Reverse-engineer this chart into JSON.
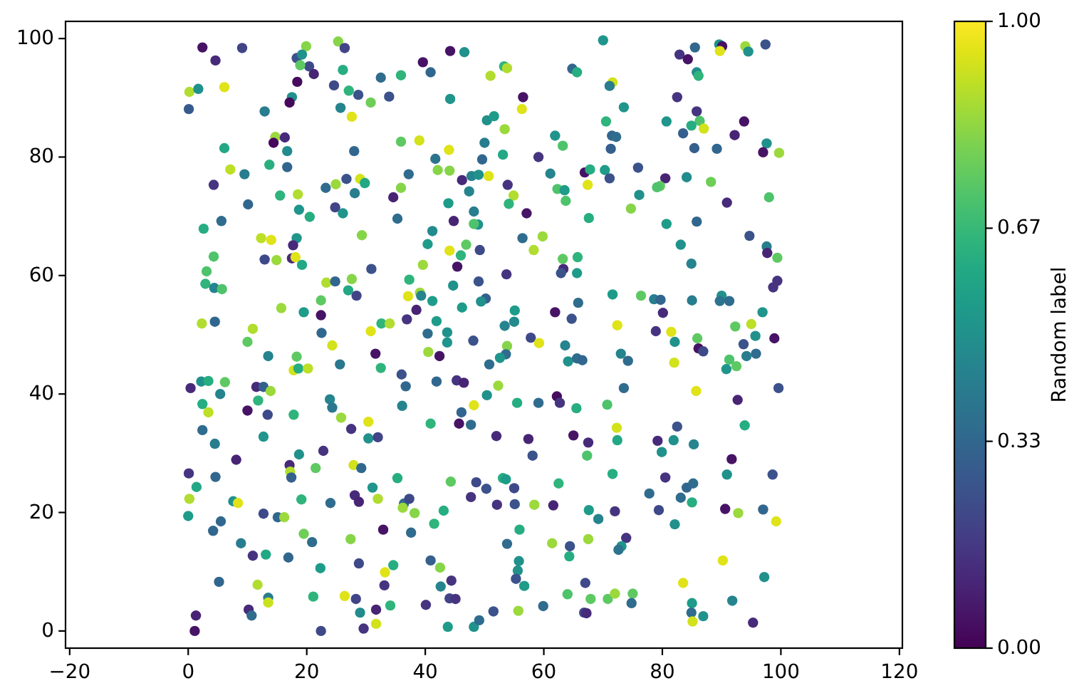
{
  "chart_data": {
    "type": "scatter",
    "marker": "circle",
    "clabel": "Random label",
    "xlim": [
      -20.7,
      120.5
    ],
    "ylim": [
      -2.9,
      102.9
    ],
    "xticks": [
      {
        "value": -20,
        "label": "−20"
      },
      0,
      20,
      40,
      60,
      80,
      100,
      120
    ],
    "yticks": [
      0,
      20,
      40,
      60,
      80,
      100
    ],
    "clim": [
      0,
      1
    ],
    "cticks": [
      {
        "value": 0,
        "label": "0.00"
      },
      {
        "value": 0.33,
        "label": "0.33"
      },
      {
        "value": 0.67,
        "label": "0.67"
      },
      {
        "value": 1,
        "label": "1.00"
      }
    ],
    "x": [
      2.4,
      4.6,
      9.1,
      19.9,
      25.3,
      26.4,
      18.3,
      19.2,
      20.4,
      18.9,
      21.2,
      18.4,
      17.5,
      17.1,
      26.1,
      24.6,
      27.1,
      28.7,
      30.8,
      25.7,
      27.6,
      32.5,
      35.9,
      33.9,
      39.6,
      40.9,
      44.2,
      46.6,
      44.2,
      0.2,
      1.7,
      6.1,
      0.1,
      12.9,
      14.7,
      16.3,
      14.4,
      16.7,
      6.1,
      13.7,
      16.7,
      7.1,
      9.5,
      4.3,
      10.1,
      5.6,
      2.6,
      28.0,
      35.9,
      39.0,
      44.0,
      41.7,
      42.1,
      44.1,
      37.2,
      46.2,
      47.8,
      49.0,
      47.4,
      24.9,
      26.7,
      29.0,
      29.8,
      23.2,
      28.1,
      35.9,
      34.6,
      24.8,
      26.1,
      15.5,
      18.5,
      18.7,
      20.5,
      35.3,
      43.9,
      48.2,
      44.8,
      48.9,
      48.2,
      41.2,
      40.4,
      46.9,
      44.1,
      46.0,
      49.2,
      45.4,
      39.6,
      29.3,
      12.3,
      14.0,
      18.3,
      17.7,
      12.9,
      14.9,
      17.5,
      18.1,
      19.2,
      4.3,
      3.1,
      2.9,
      4.4,
      5.7,
      30.9,
      23.3,
      24.8,
      27.6,
      27.0,
      28.4,
      22.4,
      37.3,
      39.1,
      37.1,
      39.3,
      41.2,
      44.7,
      49.0,
      38.5,
      36.9,
      41.9,
      46.2,
      15.7,
      19.5,
      22.4,
      2.3,
      4.5,
      10.9,
      32.6,
      34.0,
      70.0,
      82.9,
      84.3,
      85.5,
      89.6,
      90.1,
      89.7,
      94.0,
      94.5,
      97.4,
      85.8,
      86.1,
      82.5,
      85.8,
      86.3,
      84.9,
      87.0,
      83.5,
      80.7,
      93.8,
      92.2,
      97.6,
      97.0,
      99.7,
      85.4,
      89.2,
      53.3,
      53.8,
      51.0,
      64.8,
      65.6,
      56.5,
      56.3,
      71.6,
      71.1,
      73.5,
      70.5,
      50.4,
      51.6,
      53.4,
      61.9,
      63.2,
      71.5,
      72.2,
      71.3,
      50.0,
      53.1,
      49.6,
      59.1,
      61.1,
      50.7,
      53.9,
      54.9,
      54.1,
      57.1,
      66.9,
      67.8,
      67.4,
      70.3,
      71.1,
      62.3,
      63.5,
      63.7,
      75.9,
      76.1,
      74.7,
      67.6,
      80.5,
      79.6,
      79.1,
      84.1,
      88.2,
      90.9,
      98.0,
      80.7,
      85.8,
      83.1,
      84.9,
      94.7,
      97.6,
      97.7,
      99.4,
      99.4,
      98.7,
      56.4,
      59.8,
      58.3,
      63.2,
      65.7,
      63.3,
      62.9,
      65.6,
      53.7,
      50.2,
      49.4,
      65.8,
      71.6,
      76.4,
      78.6,
      79.7,
      80.1,
      85.0,
      90.0,
      89.7,
      91.3,
      96.9,
      92.3,
      95.0,
      55.1,
      55.0,
      53.4,
      61.9,
      64.7,
      72.4,
      22.5,
      30.8,
      40.4,
      43.7,
      43.7,
      48.1,
      10.0,
      24.3,
      13.5,
      18.3,
      17.8,
      18.6,
      20.2,
      25.6,
      31.6,
      40.5,
      42.4,
      32.5,
      36.0,
      36.7,
      41.9,
      45.3,
      46.5,
      0.4,
      2.2,
      3.4,
      6.2,
      5.4,
      11.5,
      12.7,
      13.9,
      2.4,
      3.4,
      11.8,
      10.0,
      13.4,
      17.8,
      23.9,
      24.3,
      25.8,
      27.5,
      30.4,
      30.4,
      32.0,
      36.1,
      40.9,
      48.2,
      46.1,
      45.7,
      47.7,
      2.4,
      4.5,
      12.7,
      8.1,
      18.7,
      22.8,
      17.1,
      17.2,
      17.4,
      21.5,
      27.9,
      29.2,
      0.1,
      4.6,
      1.4,
      0.2,
      0.0,
      7.6,
      8.4,
      5.5,
      4.2,
      12.7,
      15.1,
      16.2,
      19.1,
      24.0,
      28.1,
      28.8,
      32.0,
      31.1,
      35.3,
      36.4,
      37.3,
      36.2,
      38.2,
      43.1,
      41.5,
      44.3,
      48.6,
      47.7,
      19.5,
      20.9,
      27.4,
      32.9,
      37.6,
      8.9,
      10.9,
      13.1,
      16.9,
      22.3,
      28.8,
      34.6,
      33.2,
      33.1,
      40.9,
      42.5,
      44.4,
      42.6,
      44.1,
      45.1,
      5.2,
      11.7,
      13.5,
      13.5,
      21.1,
      26.4,
      28.3,
      29.0,
      31.7,
      34.1,
      31.7,
      29.6,
      22.4,
      40.1,
      1.3,
      1.1,
      10.2,
      10.7,
      43.8,
      48.2,
      49.1,
      78.9,
      81.5,
      85.9,
      86.1,
      86.9,
      82.1,
      82.0,
      95.7,
      98.9,
      93.7,
      94.2,
      95.8,
      91.3,
      92.5,
      90.8,
      57.8,
      59.2,
      53.8,
      53.6,
      52.6,
      50.8,
      63.6,
      64.1,
      65.6,
      66.5,
      73.0,
      74.2,
      52.3,
      50.4,
      55.5,
      59.1,
      62.2,
      62.7,
      65.5,
      70.7,
      73.5,
      85.7,
      92.7,
      99.6,
      52.0,
      57.4,
      58.1,
      65.0,
      67.5,
      67.3,
      72.3,
      72.4,
      71.6,
      79.2,
      81.9,
      82.5,
      79.9,
      85.3,
      93.9,
      91.7,
      90.9,
      98.6,
      53.1,
      53.6,
      50.3,
      55.0,
      62.5,
      52.1,
      55.1,
      58.4,
      61.6,
      67.6,
      69.2,
      72.0,
      77.8,
      80.5,
      79.4,
      83.1,
      84.1,
      85.2,
      85.0,
      82.1,
      90.6,
      92.8,
      97.0,
      99.2,
      55.9,
      53.8,
      61.4,
      64.4,
      64.3,
      67.5,
      73.9,
      73.1,
      72.6,
      55.8,
      55.6,
      55.3,
      56.7,
      67.0,
      64.0,
      67.9,
      70.8,
      72.0,
      75.0,
      74.8,
      90.2,
      83.5,
      85.0,
      84.9,
      85.1,
      86.9,
      91.8,
      97.2,
      95.3,
      51.5,
      55.7,
      59.9,
      66.8,
      67.2
    ],
    "values": [
      98.5,
      96.3,
      98.4,
      98.7,
      99.5,
      98.4,
      96.7,
      97.3,
      95.3,
      95.5,
      94.0,
      92.7,
      90.1,
      89.2,
      94.7,
      92.1,
      91.2,
      90.5,
      89.2,
      88.3,
      86.8,
      93.4,
      93.8,
      90.2,
      96.0,
      94.3,
      97.9,
      97.7,
      89.8,
      91.0,
      91.5,
      91.8,
      88.1,
      87.7,
      83.4,
      83.3,
      82.4,
      81.0,
      81.5,
      78.7,
      78.3,
      77.9,
      77.1,
      75.3,
      72.0,
      69.2,
      67.9,
      81.0,
      82.6,
      82.8,
      81.2,
      79.7,
      77.8,
      77.7,
      77.1,
      76.1,
      76.8,
      77.0,
      74.2,
      75.4,
      76.3,
      76.3,
      75.6,
      74.8,
      73.9,
      74.8,
      73.2,
      71.5,
      70.5,
      73.5,
      73.7,
      71.1,
      69.9,
      69.6,
      72.2,
      70.8,
      69.2,
      68.6,
      68.7,
      67.5,
      65.3,
      65.2,
      64.2,
      63.4,
      64.3,
      61.5,
      61.8,
      66.8,
      66.3,
      66.0,
      66.3,
      65.1,
      62.7,
      62.6,
      62.9,
      63.1,
      61.8,
      63.2,
      60.7,
      58.6,
      57.9,
      57.7,
      61.1,
      58.8,
      59.0,
      59.4,
      57.5,
      56.6,
      55.8,
      59.3,
      57.1,
      56.5,
      56.6,
      55.7,
      58.3,
      59.0,
      54.2,
      52.6,
      52.3,
      54.6,
      54.5,
      53.8,
      53.3,
      51.9,
      52.2,
      51.0,
      51.9,
      51.9,
      99.7,
      97.3,
      96.5,
      98.5,
      99.0,
      98.7,
      97.9,
      98.7,
      97.8,
      99.0,
      94.3,
      93.7,
      90.1,
      87.7,
      86.1,
      85.3,
      84.8,
      84.0,
      86.0,
      86.0,
      83.7,
      82.3,
      80.8,
      80.7,
      81.5,
      81.4,
      95.3,
      95.0,
      93.7,
      94.9,
      94.3,
      90.1,
      88.1,
      92.6,
      92.0,
      88.4,
      86.0,
      86.2,
      86.9,
      84.7,
      83.6,
      81.9,
      83.6,
      83.4,
      81.4,
      82.4,
      80.4,
      79.6,
      80.0,
      77.2,
      76.8,
      75.3,
      73.5,
      72.1,
      70.5,
      77.4,
      77.9,
      75.3,
      77.8,
      76.4,
      74.6,
      74.4,
      72.6,
      78.2,
      73.6,
      71.3,
      69.7,
      76.4,
      75.1,
      74.9,
      76.6,
      75.8,
      72.3,
      73.2,
      68.7,
      69.1,
      65.2,
      62.0,
      66.7,
      64.9,
      63.8,
      63.0,
      59.1,
      58.0,
      66.3,
      66.6,
      64.3,
      62.8,
      63.1,
      61.1,
      60.4,
      60.4,
      60.2,
      56.1,
      55.6,
      55.4,
      56.8,
      56.6,
      56.0,
      55.9,
      53.7,
      55.8,
      56.6,
      55.7,
      55.7,
      53.8,
      51.4,
      51.8,
      54.1,
      52.2,
      51.5,
      53.8,
      52.7,
      51.6,
      50.3,
      50.6,
      50.2,
      50.4,
      48.7,
      49.0,
      48.8,
      48.2,
      46.4,
      46.3,
      44.0,
      44.3,
      44.3,
      45.0,
      46.8,
      47.1,
      46.4,
      44.4,
      43.3,
      41.3,
      42.1,
      42.3,
      41.9,
      41.0,
      42.1,
      42.2,
      42.0,
      40.0,
      41.2,
      41.2,
      40.5,
      38.3,
      36.9,
      38.9,
      37.2,
      36.5,
      36.5,
      39.1,
      37.7,
      36.0,
      34.1,
      35.3,
      32.5,
      32.7,
      38.0,
      35.0,
      38.1,
      36.9,
      35.0,
      34.8,
      33.9,
      31.6,
      32.8,
      28.9,
      29.8,
      30.4,
      28.0,
      26.9,
      25.9,
      27.5,
      28.0,
      27.5,
      26.6,
      26.0,
      24.3,
      22.3,
      19.4,
      21.9,
      21.6,
      18.5,
      16.9,
      19.8,
      19.2,
      19.2,
      22.2,
      21.6,
      22.9,
      21.8,
      22.3,
      24.2,
      25.8,
      21.5,
      22.3,
      20.8,
      19.9,
      20.3,
      18.1,
      25.2,
      25.1,
      22.6,
      16.4,
      15.0,
      15.5,
      17.1,
      16.6,
      14.8,
      12.7,
      12.9,
      12.4,
      10.6,
      11.4,
      11.1,
      9.9,
      7.7,
      11.9,
      10.7,
      8.5,
      7.5,
      5.5,
      5.4,
      8.3,
      7.8,
      5.6,
      4.8,
      5.8,
      5.9,
      5.4,
      3.1,
      3.6,
      4.3,
      1.2,
      0.4,
      0.0,
      4.4,
      2.6,
      0.0,
      3.6,
      2.6,
      0.7,
      0.7,
      1.8,
      50.6,
      50.5,
      49.4,
      47.7,
      47.2,
      48.8,
      45.3,
      49.8,
      49.4,
      48.4,
      46.4,
      46.8,
      45.8,
      44.7,
      44.2,
      49.5,
      48.6,
      48.1,
      46.7,
      46.1,
      45.0,
      48.2,
      45.5,
      46.0,
      45.7,
      46.8,
      45.6,
      41.4,
      39.8,
      38.5,
      38.5,
      39.6,
      38.5,
      37.6,
      38.2,
      41.0,
      40.5,
      39.0,
      41.0,
      32.9,
      32.4,
      29.6,
      33.0,
      31.8,
      29.6,
      34.3,
      32.2,
      26.5,
      32.1,
      32.2,
      34.5,
      30.2,
      31.5,
      34.7,
      29.0,
      26.4,
      26.4,
      25.8,
      25.6,
      24.0,
      24.1,
      24.9,
      21.3,
      21.4,
      21.3,
      21.2,
      20.4,
      18.9,
      20.2,
      23.2,
      25.9,
      20.4,
      22.5,
      24.2,
      24.9,
      21.7,
      18.0,
      20.6,
      19.9,
      20.5,
      18.5,
      17.1,
      14.7,
      14.8,
      14.3,
      12.6,
      15.5,
      15.7,
      14.3,
      13.7,
      11.8,
      10.2,
      8.8,
      7.6,
      8.1,
      6.2,
      5.4,
      5.4,
      6.3,
      6.3,
      4.7,
      11.9,
      8.1,
      4.7,
      3.1,
      1.6,
      2.5,
      5.1,
      9.1,
      1.4,
      3.3,
      3.4,
      4.2,
      3.1,
      3.0
    ],
    "cvalues": [
      0.05,
      0.12,
      0.2,
      0.82,
      0.82,
      0.2,
      0.25,
      0.5,
      0.22,
      0.75,
      0.1,
      0.03,
      0.5,
      0.02,
      0.62,
      0.22,
      0.65,
      0.25,
      0.78,
      0.45,
      0.95,
      0.35,
      0.65,
      0.25,
      0.05,
      0.33,
      0.05,
      0.5,
      0.52,
      0.88,
      0.5,
      0.95,
      0.28,
      0.42,
      0.85,
      0.12,
      0.02,
      0.48,
      0.6,
      0.63,
      0.32,
      0.9,
      0.42,
      0.15,
      0.33,
      0.35,
      0.62,
      0.33,
      0.75,
      0.93,
      0.95,
      0.38,
      0.82,
      0.82,
      0.35,
      0.12,
      0.45,
      0.5,
      0.45,
      0.85,
      0.25,
      0.93,
      0.6,
      0.35,
      0.42,
      0.82,
      0.1,
      0.2,
      0.52,
      0.65,
      0.88,
      0.52,
      0.62,
      0.35,
      0.55,
      0.42,
      0.1,
      0.5,
      0.72,
      0.48,
      0.55,
      0.75,
      0.95,
      0.65,
      0.22,
      0.05,
      0.85,
      0.82,
      0.9,
      0.95,
      0.52,
      0.12,
      0.22,
      0.85,
      0.12,
      0.95,
      0.6,
      0.72,
      0.72,
      0.65,
      0.45,
      0.72,
      0.25,
      0.88,
      0.33,
      0.82,
      0.6,
      0.2,
      0.75,
      0.65,
      0.85,
      0.95,
      0.45,
      0.55,
      0.5,
      0.25,
      0.1,
      0.15,
      0.55,
      0.55,
      0.85,
      0.55,
      0.05,
      0.88,
      0.33,
      0.88,
      0.65,
      0.88,
      0.52,
      0.15,
      0.05,
      0.33,
      0.5,
      0.05,
      0.95,
      0.85,
      0.5,
      0.25,
      0.48,
      0.65,
      0.15,
      0.15,
      0.72,
      0.62,
      0.93,
      0.3,
      0.52,
      0.05,
      0.1,
      0.5,
      0.05,
      0.85,
      0.3,
      0.33,
      0.65,
      0.88,
      0.88,
      0.33,
      0.62,
      0.05,
      0.95,
      0.93,
      0.42,
      0.52,
      0.65,
      0.5,
      0.55,
      0.85,
      0.52,
      0.72,
      0.33,
      0.35,
      0.3,
      0.42,
      0.6,
      0.33,
      0.15,
      0.45,
      0.95,
      0.15,
      0.88,
      0.65,
      0.05,
      0.05,
      0.62,
      0.95,
      0.55,
      0.25,
      0.72,
      0.55,
      0.72,
      0.25,
      0.5,
      0.82,
      0.62,
      0.1,
      0.75,
      0.72,
      0.48,
      0.78,
      0.12,
      0.72,
      0.55,
      0.33,
      0.5,
      0.45,
      0.25,
      0.42,
      0.1,
      0.75,
      0.15,
      0.15,
      0.35,
      0.85,
      0.88,
      0.75,
      0.65,
      0.12,
      0.25,
      0.55,
      0.15,
      0.3,
      0.5,
      0.35,
      0.55,
      0.75,
      0.42,
      0.33,
      0.12,
      0.42,
      0.5,
      0.38,
      0.35,
      0.52,
      0.75,
      0.9,
      0.55,
      0.48,
      0.45,
      0.05,
      0.25,
      0.95,
      0.33,
      0.95,
      0.35,
      0.5,
      0.52,
      0.25,
      0.75,
      0.93,
      0.45,
      0.75,
      0.93,
      0.62,
      0.9,
      0.4,
      0.05,
      0.85,
      0.05,
      0.65,
      0.25,
      0.33,
      0.33,
      0.15,
      0.1,
      0.12,
      0.5,
      0.62,
      0.75,
      0.45,
      0.12,
      0.3,
      0.85,
      0.62,
      0.9,
      0.65,
      0.05,
      0.22,
      0.65,
      0.45,
      0.4,
      0.85,
      0.15,
      0.95,
      0.5,
      0.2,
      0.45,
      0.65,
      0.95,
      0.33,
      0.05,
      0.35,
      0.35,
      0.42,
      0.52,
      0.1,
      0.5,
      0.15,
      0.12,
      0.88,
      0.3,
      0.75,
      0.93,
      0.33,
      0.15,
      0.33,
      0.6,
      0.88,
      0.55,
      0.5,
      0.95,
      0.33,
      0.33,
      0.22,
      0.33,
      0.85,
      0.65,
      0.35,
      0.12,
      0.1,
      0.88,
      0.52,
      0.62,
      0.33,
      0.22,
      0.85,
      0.82,
      0.62,
      0.65,
      0.75,
      0.22,
      0.15,
      0.78,
      0.35,
      0.82,
      0.05,
      0.35,
      0.42,
      0.15,
      0.6,
      0.33,
      0.55,
      0.22,
      0.62,
      0.95,
      0.15,
      0.3,
      0.82,
      0.15,
      0.45,
      0.2,
      0.15,
      0.33,
      0.88,
      0.42,
      0.92,
      0.65,
      0.95,
      0.2,
      0.48,
      0.1,
      0.65,
      0.93,
      0.15,
      0.22,
      0.15,
      0.1,
      0.05,
      0.12,
      0.35,
      0.55,
      0.5,
      0.35,
      0.15,
      0.95,
      0.75,
      0.05,
      0.22,
      0.5,
      0.93,
      0.5,
      0.05,
      0.25,
      0.42,
      0.35,
      0.72,
      0.75,
      0.52,
      0.22,
      0.95,
      0.82,
      0.35,
      0.52,
      0.35,
      0.45,
      0.5,
      0.35,
      0.33,
      0.45,
      0.35,
      0.85,
      0.5,
      0.62,
      0.35,
      0.03,
      0.15,
      0.62,
      0.72,
      0.35,
      0.95,
      0.1,
      0.25,
      0.12,
      0.1,
      0.25,
      0.05,
      0.12,
      0.72,
      0.93,
      0.6,
      0.62,
      0.12,
      0.5,
      0.25,
      0.5,
      0.45,
      0.62,
      0.05,
      0.5,
      0.25,
      0.62,
      0.55,
      0.25,
      0.22,
      0.65,
      0.15,
      0.25,
      0.85,
      0.1,
      0.55,
      0.45,
      0.15,
      0.35,
      0.15,
      0.22,
      0.35,
      0.33,
      0.35,
      0.62,
      0.5,
      0.05,
      0.85,
      0.33,
      0.95,
      0.62,
      0.35,
      0.85,
      0.25,
      0.62,
      0.85,
      0.15,
      0.52,
      0.38,
      0.5,
      0.5,
      0.25,
      0.55,
      0.22,
      0.72,
      0.75,
      0.75,
      0.85,
      0.75,
      0.35,
      0.95,
      0.95,
      0.55,
      0.35,
      0.93,
      0.5,
      0.45,
      0.5,
      0.12,
      0.25,
      0.85,
      0.35,
      0.22,
      0.12
    ]
  }
}
